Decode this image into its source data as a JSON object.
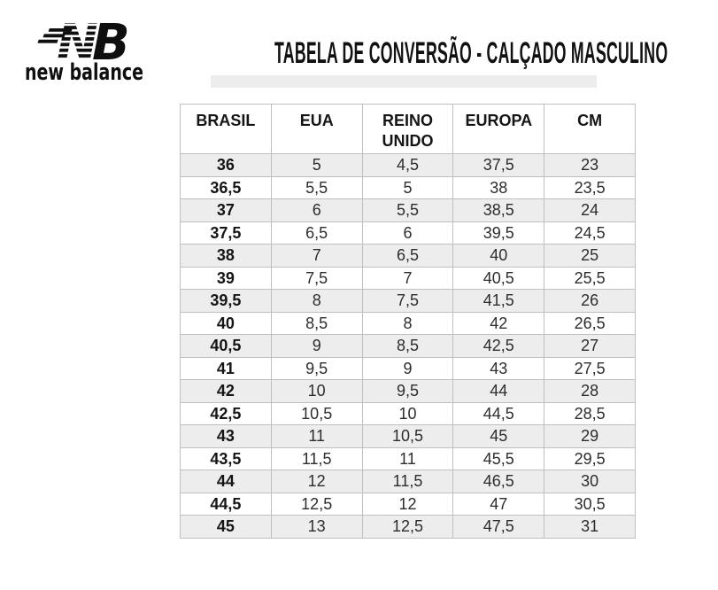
{
  "brand": {
    "mark_n": "N",
    "mark_b": "B",
    "name": "new balance",
    "icon": "new-balance-nb-icon"
  },
  "title": "TABELA DE CONVERSÃO - CALÇADO MASCULINO",
  "table": {
    "columns": [
      "BRASIL",
      "EUA",
      "REINO UNIDO",
      "EUROPA",
      "CM"
    ],
    "rows": [
      [
        "36",
        "5",
        "4,5",
        "37,5",
        "23"
      ],
      [
        "36,5",
        "5,5",
        "5",
        "38",
        "23,5"
      ],
      [
        "37",
        "6",
        "5,5",
        "38,5",
        "24"
      ],
      [
        "37,5",
        "6,5",
        "6",
        "39,5",
        "24,5"
      ],
      [
        "38",
        "7",
        "6,5",
        "40",
        "25"
      ],
      [
        "39",
        "7,5",
        "7",
        "40,5",
        "25,5"
      ],
      [
        "39,5",
        "8",
        "7,5",
        "41,5",
        "26"
      ],
      [
        "40",
        "8,5",
        "8",
        "42",
        "26,5"
      ],
      [
        "40,5",
        "9",
        "8,5",
        "42,5",
        "27"
      ],
      [
        "41",
        "9,5",
        "9",
        "43",
        "27,5"
      ],
      [
        "42",
        "10",
        "9,5",
        "44",
        "28"
      ],
      [
        "42,5",
        "10,5",
        "10",
        "44,5",
        "28,5"
      ],
      [
        "43",
        "11",
        "10,5",
        "45",
        "29"
      ],
      [
        "43,5",
        "11,5",
        "11",
        "45,5",
        "29,5"
      ],
      [
        "44",
        "12",
        "11,5",
        "46,5",
        "30"
      ],
      [
        "44,5",
        "12,5",
        "12",
        "47",
        "30,5"
      ],
      [
        "45",
        "13",
        "12,5",
        "47,5",
        "31"
      ]
    ]
  },
  "colors": {
    "row_stripe": "#ededed",
    "table_border": "#bfbfbf",
    "title_bar": "#ededed",
    "ink": "#111111"
  }
}
